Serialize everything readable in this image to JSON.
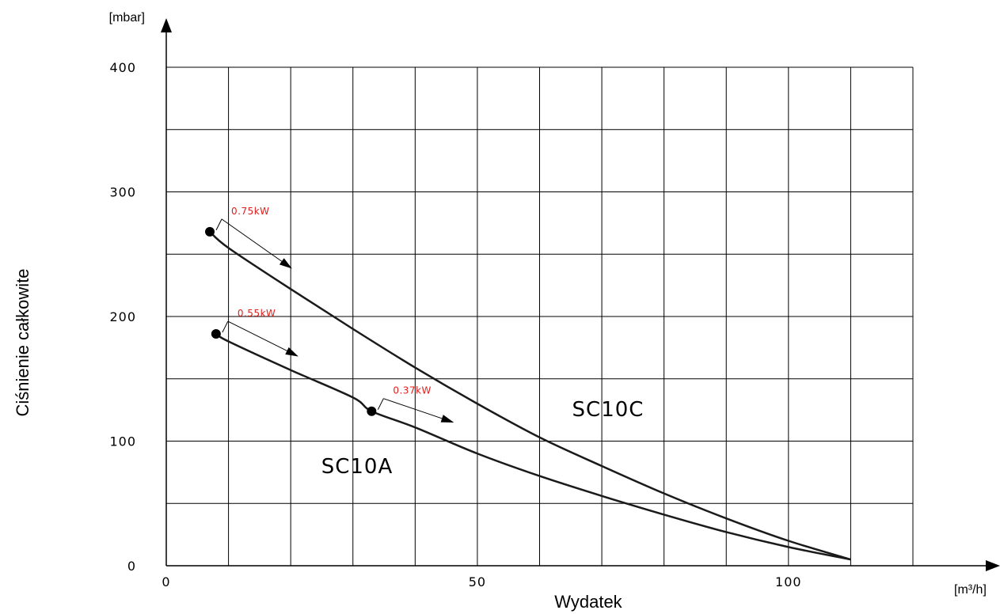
{
  "chart_data": {
    "type": "line",
    "title": "",
    "xlabel": "Wydatek",
    "ylabel": "Ciśnienie całkowite",
    "x_unit": "[m³/h]",
    "y_unit": "[mbar]",
    "xlim": [
      0,
      120
    ],
    "ylim": [
      0,
      400
    ],
    "x_ticks": [
      0,
      50,
      100
    ],
    "y_ticks": [
      0,
      100,
      200,
      300,
      400
    ],
    "x_grid_step": 10,
    "y_grid_step": 50,
    "grid": true,
    "colors": {
      "curve": "#1a1a1a",
      "power_label": "#e0201e",
      "grid": "#000000"
    },
    "series": [
      {
        "name": "SC10C",
        "x": [
          7,
          10,
          20,
          30,
          40,
          50,
          60,
          70,
          80,
          90,
          100,
          110
        ],
        "y": [
          268,
          255,
          222,
          190,
          159,
          130,
          103,
          80,
          58,
          38,
          20,
          5
        ]
      },
      {
        "name": "SC10A",
        "x": [
          8,
          10,
          20,
          30,
          33,
          40,
          50,
          60,
          70,
          80,
          90,
          100,
          110
        ],
        "y": [
          186,
          180,
          157,
          135,
          124,
          111,
          90,
          72,
          56,
          41,
          27,
          15,
          5
        ]
      }
    ],
    "annotations": [
      {
        "text": "0.75kW",
        "x": 7,
        "y": 268
      },
      {
        "text": "0.55kW",
        "x": 8,
        "y": 186
      },
      {
        "text": "0.37kW",
        "x": 33,
        "y": 124
      }
    ]
  }
}
